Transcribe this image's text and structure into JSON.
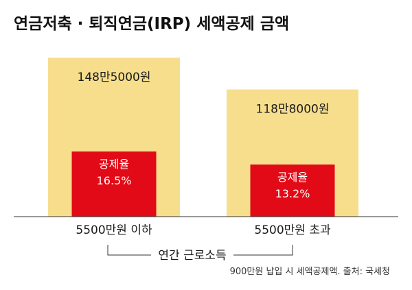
{
  "title": "연금저축 · 퇴직연금(IRP) 세액공제 금액",
  "colors": {
    "amount_bar": "#f6de8d",
    "rate_bar": "#e10a16",
    "axis": "#333333",
    "text": "#1a1a1a"
  },
  "chart_data": {
    "type": "bar",
    "title": "연금저축 · 퇴직연금(IRP) 세액공제 금액",
    "xlabel": "연간 근로소득",
    "ylabel": "",
    "categories": [
      "5500만원 이하",
      "5500만원 초과"
    ],
    "series": [
      {
        "name": "세액공제 금액",
        "values": [
          1485000,
          1188000
        ],
        "labels": [
          "148만5000원",
          "118만8000원"
        ]
      },
      {
        "name": "공제율",
        "values": [
          16.5,
          13.2
        ],
        "labels": [
          "16.5%",
          "13.2%"
        ],
        "label_title": "공제율"
      }
    ],
    "ylim": [
      0,
      1550000
    ],
    "note": "900만원 납입 시 세액공제액. 출처: 국세청",
    "grid": false
  }
}
